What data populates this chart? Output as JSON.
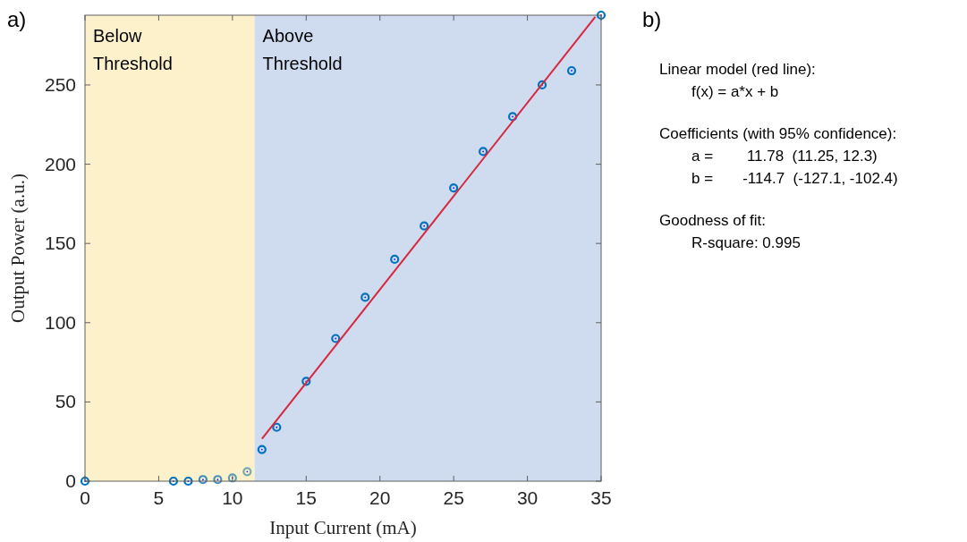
{
  "chart_data": [
    {
      "type": "scatter",
      "title": "a)",
      "xlabel": "Input Current (mA)",
      "ylabel": "Output Power (a.u.)",
      "xlim": [
        0,
        35
      ],
      "ylim": [
        0,
        294
      ],
      "xticks": [
        0,
        5,
        10,
        15,
        20,
        25,
        30,
        35
      ],
      "yticks": [
        0,
        50,
        100,
        150,
        200,
        250
      ],
      "grid": false,
      "bands": [
        {
          "axis": "x",
          "from": 0,
          "to": 11.5,
          "label": "Below Threshold",
          "color": "#fdf1cc"
        },
        {
          "axis": "x",
          "from": 11.5,
          "to": 35,
          "label": "Above Threshold",
          "color": "#cfdbee"
        }
      ],
      "series": [
        {
          "type": "scatter",
          "marker": "circle",
          "x": [
            0,
            6,
            7,
            8,
            9,
            10,
            11,
            12,
            13,
            15,
            17,
            19,
            21,
            23,
            25,
            27,
            29,
            31,
            33,
            35
          ],
          "values": [
            0,
            0,
            0,
            1,
            1,
            2,
            6,
            20,
            34,
            63,
            90,
            116,
            140,
            161,
            185,
            208,
            230,
            250,
            259,
            294
          ],
          "colors": [
            "#0072bd",
            "#0072bd",
            "#0072bd",
            "#3d8bbd",
            "#4a92b8",
            "#5e9cb4",
            "#78a9b0",
            "#0072bd",
            "#0072bd",
            "#0072bd",
            "#0072bd",
            "#0072bd",
            "#0072bd",
            "#0072bd",
            "#0072bd",
            "#0072bd",
            "#0072bd",
            "#0072bd",
            "#0072bd",
            "#0072bd"
          ]
        },
        {
          "type": "line",
          "x": [
            12,
            34.6
          ],
          "values": [
            26.7,
            292.9
          ],
          "color": "#d7263d"
        }
      ]
    },
    {
      "type": "other",
      "title": "b)",
      "annotations": [
        "Linear model (red line):",
        "f(x) = a*x + b",
        "Coefficients (with 95% confidence):",
        "a =        11.78  (11.25, 12.3)",
        "b =       -114.7  (-127.1, -102.4)",
        "Goodness of fit:",
        "R-square: 0.995"
      ]
    }
  ]
}
